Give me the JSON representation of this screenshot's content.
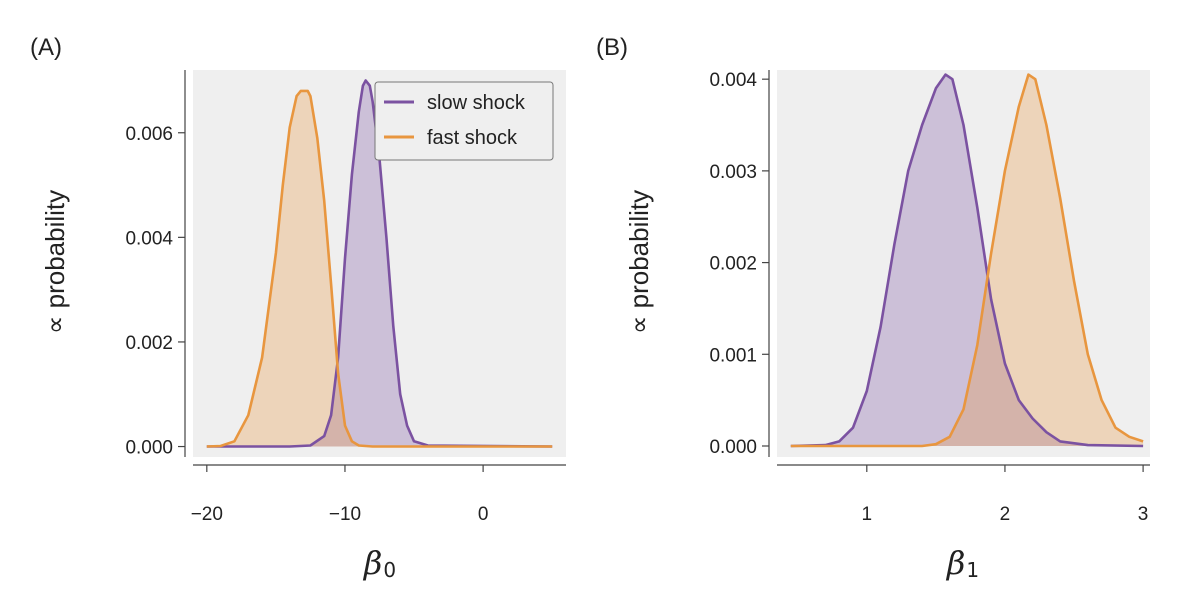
{
  "colors": {
    "slow": "#7b52a1",
    "fast": "#e8963f",
    "background": "#efefef"
  },
  "chart_data": [
    {
      "type": "area",
      "panel_label": "(A)",
      "xlabel_symbol": "β",
      "xlabel_sub": "0",
      "ylabel": "∝ probability",
      "xlim": [
        -21,
        6
      ],
      "ylim": [
        -0.0002,
        0.0072
      ],
      "xticks": [
        -20,
        -10,
        0
      ],
      "xtick_labels": [
        "−20",
        "−10",
        "0"
      ],
      "yticks": [
        0,
        0.002,
        0.004,
        0.006
      ],
      "ytick_labels": [
        "0.000",
        "0.002",
        "0.004",
        "0.006"
      ],
      "legend": {
        "position": "top-right",
        "entries": [
          "slow shock",
          "fast shock"
        ]
      },
      "series": [
        {
          "name": "slow shock",
          "color_key": "slow",
          "x": [
            -20,
            -14,
            -12.5,
            -11.5,
            -11,
            -10.5,
            -10,
            -9.5,
            -9,
            -8.7,
            -8.5,
            -8.2,
            -8,
            -7.5,
            -7,
            -6.5,
            -6,
            -5.5,
            -5,
            -4,
            5
          ],
          "y": [
            0,
            0,
            2e-05,
            0.0002,
            0.0006,
            0.0017,
            0.0036,
            0.0052,
            0.0064,
            0.0069,
            0.007,
            0.0069,
            0.0066,
            0.0055,
            0.004,
            0.0023,
            0.001,
            0.0004,
            0.0001,
            2e-05,
            0
          ]
        },
        {
          "name": "fast shock",
          "color_key": "fast",
          "x": [
            -20,
            -19,
            -18,
            -17,
            -16,
            -15,
            -14.5,
            -14,
            -13.5,
            -13.2,
            -13,
            -12.7,
            -12.5,
            -12,
            -11.5,
            -11,
            -10.5,
            -10,
            -9.5,
            -9,
            -8,
            5
          ],
          "y": [
            0,
            1e-05,
            0.0001,
            0.0006,
            0.0017,
            0.0037,
            0.005,
            0.0061,
            0.0067,
            0.0068,
            0.0068,
            0.0068,
            0.0067,
            0.0059,
            0.0047,
            0.0031,
            0.0014,
            0.0004,
            0.0001,
            2e-05,
            0,
            0
          ]
        }
      ]
    },
    {
      "type": "area",
      "panel_label": "(B)",
      "xlabel_symbol": "β",
      "xlabel_sub": "1",
      "ylabel": "∝ probability",
      "xlim": [
        0.35,
        3.05
      ],
      "ylim": [
        -0.00012,
        0.0041
      ],
      "xticks": [
        1,
        2,
        3
      ],
      "xtick_labels": [
        "1",
        "2",
        "3"
      ],
      "yticks": [
        0,
        0.001,
        0.002,
        0.003,
        0.004
      ],
      "ytick_labels": [
        "0.000",
        "0.001",
        "0.002",
        "0.003",
        "0.004"
      ],
      "series": [
        {
          "name": "slow shock",
          "color_key": "slow",
          "x": [
            0.45,
            0.7,
            0.8,
            0.9,
            1.0,
            1.1,
            1.2,
            1.3,
            1.4,
            1.5,
            1.57,
            1.62,
            1.7,
            1.8,
            1.9,
            2.0,
            2.1,
            2.2,
            2.3,
            2.4,
            2.6,
            3.0
          ],
          "y": [
            0,
            1e-05,
            5e-05,
            0.0002,
            0.0006,
            0.0013,
            0.0022,
            0.003,
            0.0035,
            0.0039,
            0.00405,
            0.004,
            0.0035,
            0.0026,
            0.0016,
            0.0009,
            0.0005,
            0.0003,
            0.00015,
            5e-05,
            1e-05,
            0
          ]
        },
        {
          "name": "fast shock",
          "color_key": "fast",
          "x": [
            0.45,
            1.4,
            1.5,
            1.6,
            1.7,
            1.8,
            1.9,
            2.0,
            2.1,
            2.17,
            2.22,
            2.3,
            2.4,
            2.5,
            2.6,
            2.7,
            2.8,
            2.9,
            3.0
          ],
          "y": [
            0,
            0,
            2e-05,
            0.0001,
            0.0004,
            0.0011,
            0.0021,
            0.003,
            0.0037,
            0.00405,
            0.004,
            0.0035,
            0.0027,
            0.0018,
            0.001,
            0.0005,
            0.0002,
            0.0001,
            5e-05
          ]
        }
      ]
    }
  ]
}
